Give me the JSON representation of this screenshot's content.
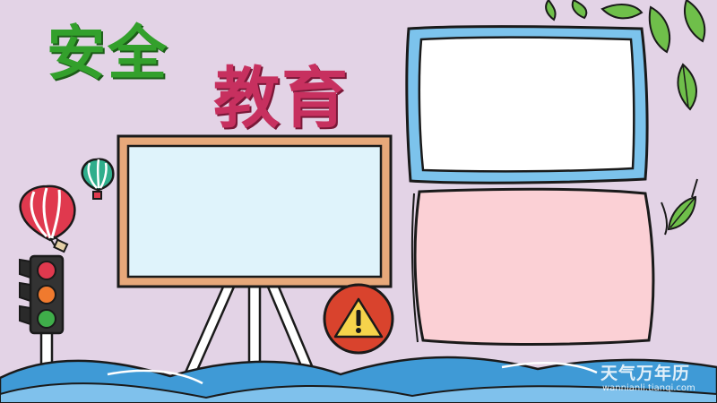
{
  "title": {
    "line1": "安全",
    "line2": "教育"
  },
  "watermark": {
    "main": "天气万年历",
    "sub": "wannianli.tianqi.com"
  },
  "icons": {
    "warning": "warning-sign-icon",
    "traffic_light": "traffic-light-icon",
    "balloons": "hot-air-balloon-icon",
    "leaves": "leaf-icon"
  },
  "colors": {
    "background": "#e3d3e6",
    "title_line1": "#33a02c",
    "title_line2": "#c7305f",
    "frame_top_right": "#7cc3ec",
    "frame_bottom_right": "#fbd0d5",
    "board_screen": "#dff3fb",
    "board_border": "#e7a87a",
    "warning_badge": "#d9432d",
    "warning_triangle": "#f6d34b",
    "waves": "#3f9ad6"
  }
}
